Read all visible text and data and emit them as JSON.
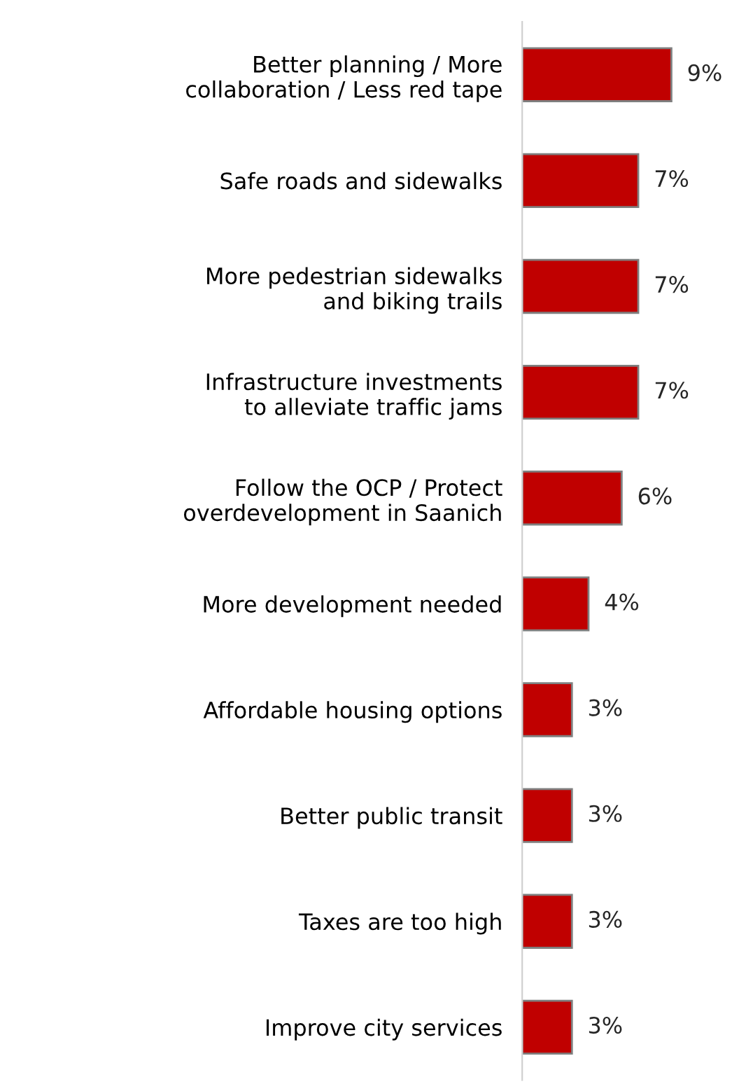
{
  "chart_data": {
    "type": "bar",
    "orientation": "horizontal",
    "categories": [
      "Better planning / More collaboration / Less red tape",
      "Safe roads and sidewalks",
      "More pedestrian sidewalks and biking trails",
      "Infrastructure investments to alleviate traffic jams",
      "Follow the OCP / Protect overdevelopment in Saanich",
      "More development needed",
      "Affordable housing options",
      "Better public transit",
      "Taxes are too high",
      "Improve city services"
    ],
    "values": [
      9,
      7,
      7,
      7,
      6,
      4,
      3,
      3,
      3,
      3
    ],
    "value_labels": [
      "9%",
      "7%",
      "7%",
      "7%",
      "6%",
      "4%",
      "3%",
      "3%",
      "3%",
      "3%"
    ],
    "color": "#c00000",
    "grid": false,
    "legend": false
  }
}
